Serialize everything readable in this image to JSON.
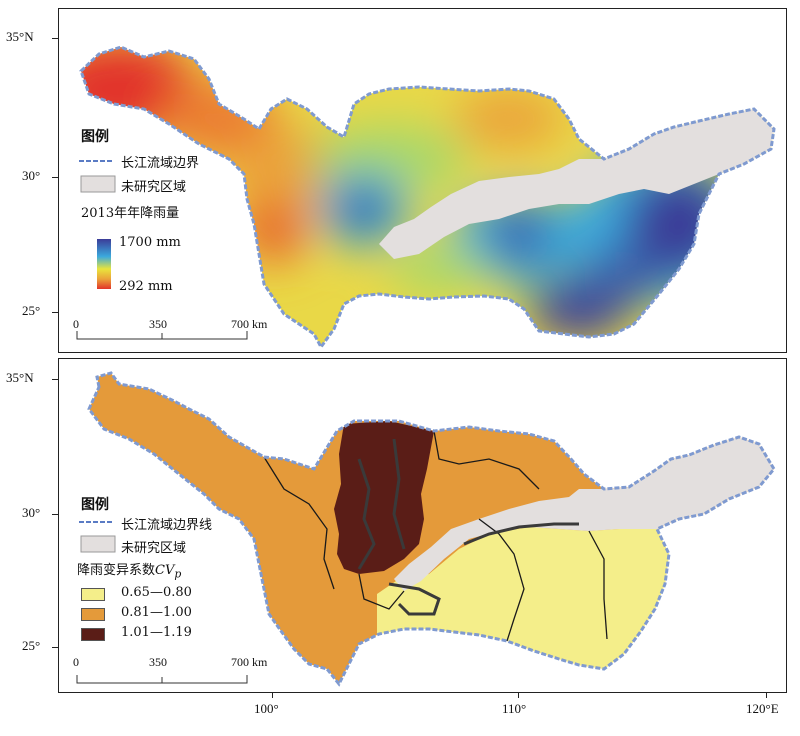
{
  "axes": {
    "lat_labels": [
      "35°N",
      "30°",
      "25°"
    ],
    "lon_labels": [
      "100°",
      "110°",
      "120°E"
    ]
  },
  "panel_top": {
    "legend_title": "图例",
    "boundary_label": "长江流域边界",
    "unstudied_label": "未研究区域",
    "variable_label": "2013年年降雨量",
    "scale_max_label": "1700 mm",
    "scale_min_label": "292 mm",
    "scalebar": [
      "0",
      "350",
      "700 km"
    ],
    "colors": {
      "high": "#3b3c98",
      "mid_high": "#3ba9dd",
      "mid": "#e9e43c",
      "mid_low": "#eba33a",
      "low": "#e2332a",
      "unstudied": "#e3dfde",
      "boundary": "#5a7bc4"
    }
  },
  "panel_bottom": {
    "legend_title": "图例",
    "boundary_label": "长江流域边界线",
    "unstudied_label": "未研究区域",
    "variable_label": "降雨变异系数",
    "variable_symbol": "CV",
    "variable_subscript": "p",
    "classes": [
      {
        "label": "0.65—0.80",
        "color": "#f4ee8a"
      },
      {
        "label": "0.81—1.00",
        "color": "#e49a3a"
      },
      {
        "label": "1.01—1.19",
        "color": "#5a1d17"
      }
    ],
    "scalebar": [
      "0",
      "350",
      "700 km"
    ],
    "colors": {
      "unstudied": "#e3dfde",
      "boundary": "#5a7bc4"
    }
  }
}
